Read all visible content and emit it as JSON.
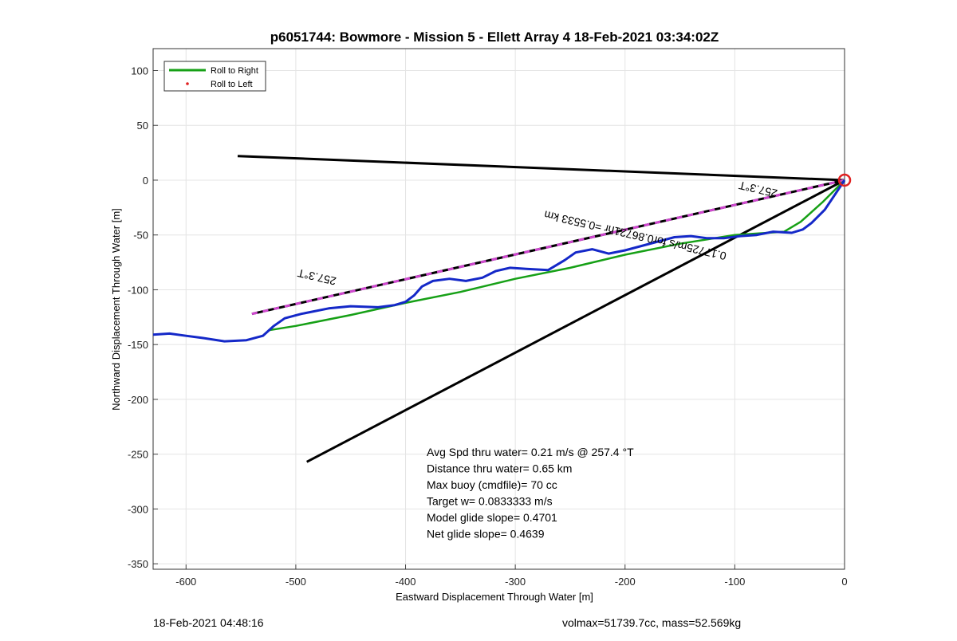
{
  "footer": {
    "timestamp": "18-Feb-2021 04:48:16",
    "summary": "volmax=51739.7cc, mass=52.569kg"
  },
  "chart_data": {
    "type": "line",
    "title": "p6051744: Bowmore - Mission 5 - Ellett Array 4 18-Feb-2021 03:34:02Z",
    "xlabel": "Eastward Displacement Through Water [m]",
    "ylabel": "Northward Displacement Through Water [m]",
    "xlim": [
      -630,
      0
    ],
    "ylim": [
      -355,
      120
    ],
    "xticks": [
      -600,
      -500,
      -400,
      -300,
      -200,
      -100,
      0
    ],
    "yticks": [
      100,
      50,
      0,
      -50,
      -100,
      -150,
      -200,
      -250,
      -300,
      -350
    ],
    "grid": true,
    "legend_position": "top-left",
    "legend": [
      {
        "label": "Roll to Right",
        "color": "#16a016",
        "marker": "line"
      },
      {
        "label": "Roll to Left",
        "color": "#e02020",
        "marker": "dot"
      }
    ],
    "series": [
      {
        "name": "Roll to Right",
        "color": "#16a016",
        "x": [
          0,
          -20,
          -40,
          -55,
          -100,
          -150,
          -200,
          -250,
          -300,
          -350,
          -400,
          -450,
          -500,
          -525
        ],
        "y": [
          0,
          -20,
          -38,
          -47,
          -50,
          -58,
          -68,
          -80,
          -90,
          -102,
          -112,
          -123,
          -133,
          -137
        ]
      },
      {
        "color": "#1428c8",
        "x": [
          -630,
          -615,
          -600,
          -585,
          -565,
          -545,
          -530,
          -520,
          -510,
          -495,
          -470,
          -450,
          -425,
          -410,
          -400,
          -392,
          -385,
          -375,
          -360,
          -345,
          -330,
          -318,
          -305,
          -290,
          -270,
          -255,
          -245,
          -230,
          -215,
          -200,
          -185,
          -170,
          -155,
          -140,
          -125,
          -110,
          -95,
          -80,
          -65,
          -48,
          -38,
          -30,
          -18,
          -8,
          0
        ],
        "y": [
          -141,
          -140,
          -142,
          -144,
          -147,
          -146,
          -142,
          -133,
          -126,
          -122,
          -117,
          -115,
          -116,
          -114,
          -111,
          -105,
          -97,
          -92,
          -90,
          -92,
          -89,
          -83,
          -80,
          -81,
          -82,
          -73,
          -66,
          -63,
          -67,
          -64,
          -60,
          -56,
          -52,
          -51,
          -53,
          -53,
          -51,
          -50,
          -47,
          -48,
          -45,
          -39,
          -27,
          -12,
          0
        ]
      }
    ],
    "overlay_lines": [
      {
        "color": "#000000",
        "x": [
          -553,
          0
        ],
        "y": [
          22,
          0
        ]
      },
      {
        "color": "#000000",
        "x": [
          -490,
          0
        ],
        "y": [
          -257,
          0
        ]
      },
      {
        "color": "#000000",
        "dashed_color": "#d048d0",
        "x": [
          -540,
          0
        ],
        "y": [
          -122,
          0
        ]
      }
    ],
    "marker": {
      "x": 0,
      "y": 0,
      "color": "#e02020"
    },
    "line_labels": [
      {
        "text": "257.3°T",
        "x": -480,
        "y": -85,
        "angle": 193
      },
      {
        "text": "257.3°T",
        "x": -78,
        "y": -5,
        "angle": 193
      },
      {
        "text": "0.17725m/s for0.86721hr =0.5533 km",
        "x": -190,
        "y": -47,
        "angle": 193
      }
    ],
    "annotations": [
      "Avg Spd thru water=  0.21 m/s @ 257.4 °T",
      "Distance thru water=  0.65 km",
      "Max buoy (cmdfile)= 70 cc",
      "Target w= 0.0833333 m/s",
      "Model glide slope= 0.4701",
      "Net glide slope= 0.4639"
    ]
  }
}
